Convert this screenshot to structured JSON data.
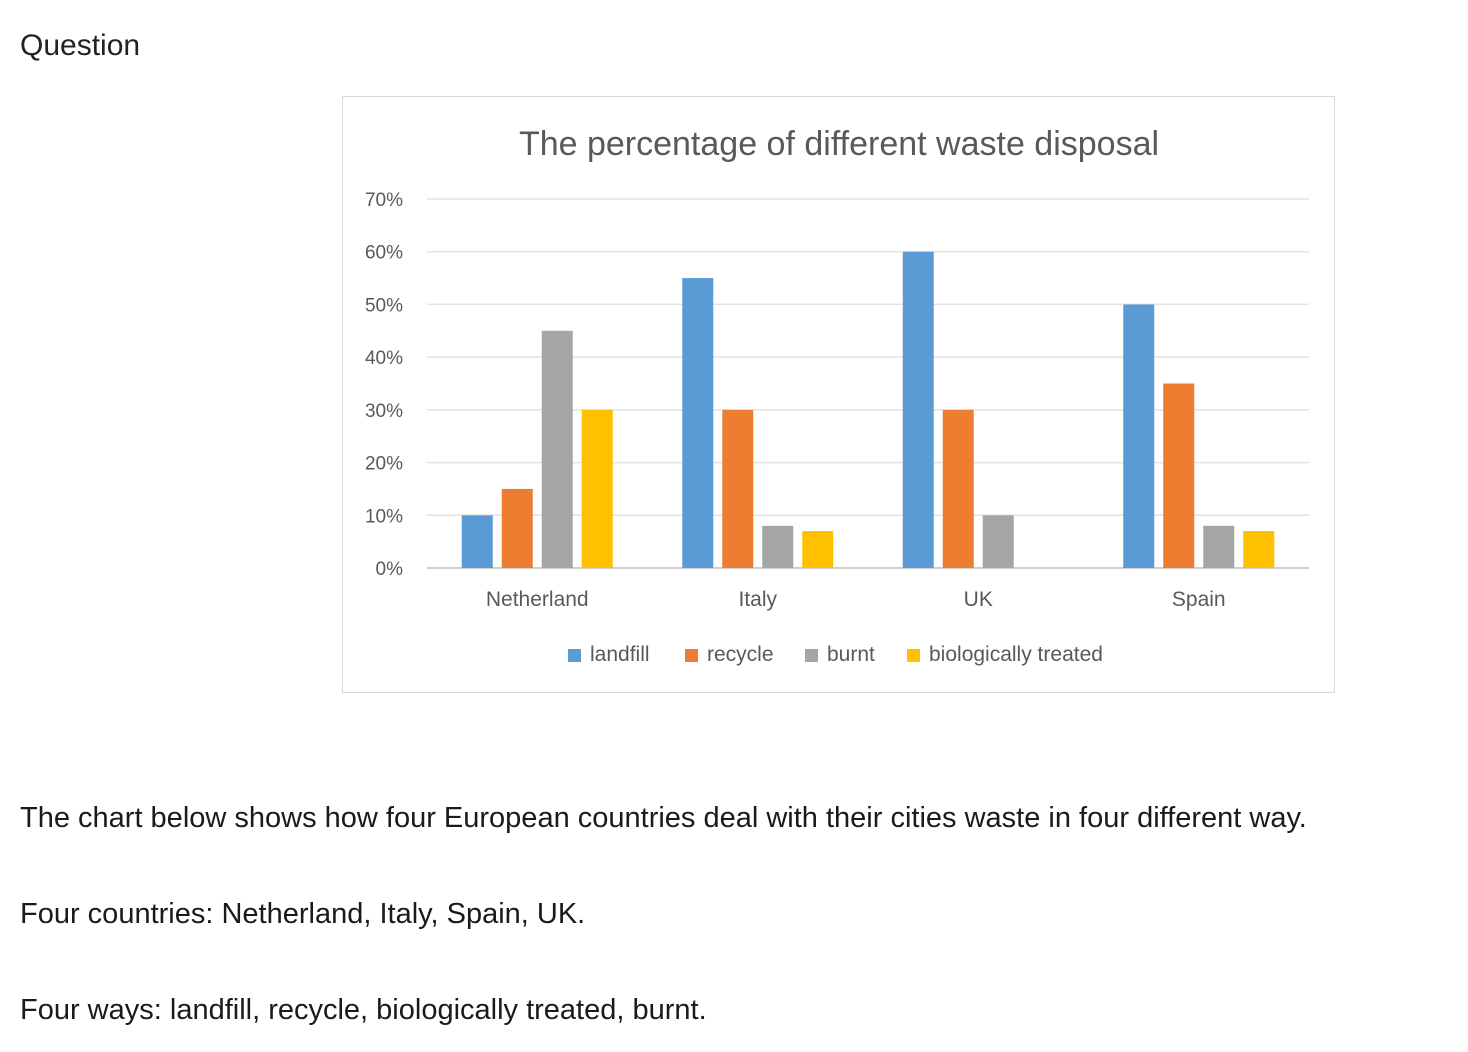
{
  "page": {
    "heading": "Question",
    "paragraphs": [
      "The chart below shows how four European countries deal with their cities waste in four different way.",
      "Four countries: Netherland, Italy, Spain, UK.",
      "Four ways: landfill, recycle, biologically treated, burnt."
    ]
  },
  "chart_data": {
    "type": "bar",
    "title": "The percentage of different waste disposal",
    "xlabel": "",
    "ylabel": "",
    "categories": [
      "Netherland",
      "Italy",
      "UK",
      "Spain"
    ],
    "ylim": [
      0,
      70
    ],
    "yticks": [
      0,
      10,
      20,
      30,
      40,
      50,
      60,
      70
    ],
    "ytick_labels": [
      "0%",
      "10%",
      "20%",
      "30%",
      "40%",
      "50%",
      "60%",
      "70%"
    ],
    "grid": true,
    "legend_position": "bottom",
    "series": [
      {
        "name": "landfill",
        "color": "#5b9bd5",
        "values": [
          10,
          55,
          60,
          50
        ]
      },
      {
        "name": "recycle",
        "color": "#ed7d31",
        "values": [
          15,
          30,
          30,
          35
        ]
      },
      {
        "name": "burnt",
        "color": "#a5a5a5",
        "values": [
          45,
          8,
          10,
          8
        ]
      },
      {
        "name": "biologically treated",
        "color": "#ffc000",
        "values": [
          30,
          7,
          0,
          7
        ]
      }
    ]
  }
}
